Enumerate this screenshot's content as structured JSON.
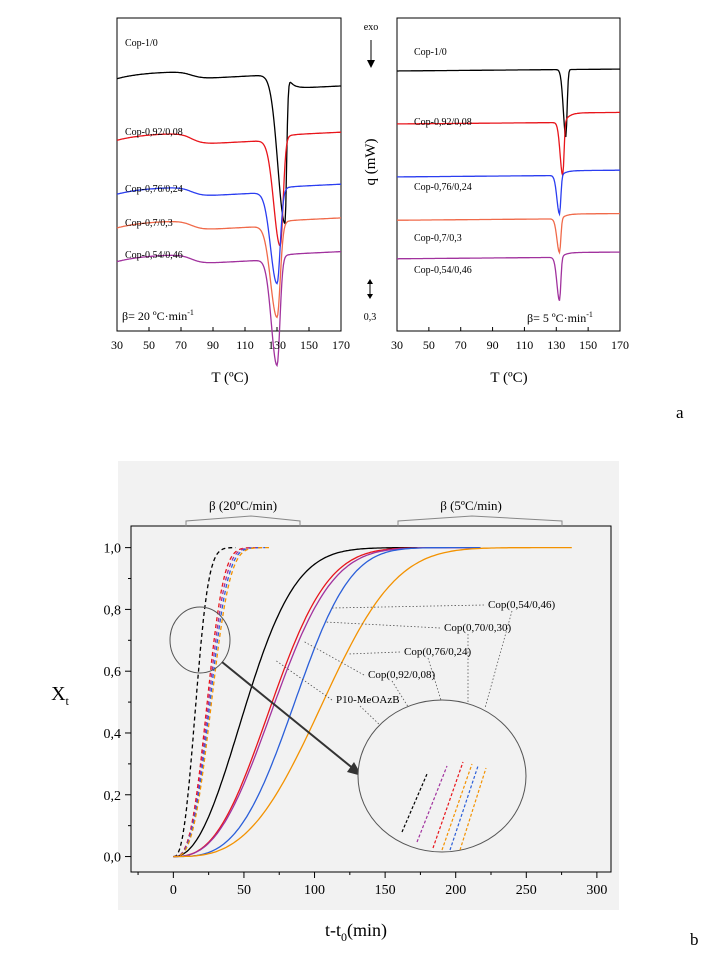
{
  "chart_data": [
    {
      "type": "line",
      "panel": "a-left",
      "xlabel": "T (ºC)",
      "xlim": [
        30,
        170
      ],
      "xticks": [
        30,
        50,
        70,
        90,
        110,
        130,
        150,
        170
      ],
      "annotation": "β= 20 ºC·min-1",
      "series": [
        {
          "name": "Cop-1/0",
          "color": "#000000",
          "base": 1.0,
          "glass_T": 77,
          "glass_step": 0.08,
          "peak_T": 135,
          "peak_depth": 1.55,
          "peak_w_left": 4.5,
          "peak_w_right": 1.0,
          "post_level": -0.15
        },
        {
          "name": "Cop-0,92/0,08",
          "color": "#e8151b",
          "base": 0.36,
          "glass_T": 77,
          "glass_step": 0.12,
          "peak_T": 132,
          "peak_depth": 1.1,
          "peak_w_left": 4.0,
          "peak_w_right": 1.8,
          "post_level": 0.05
        },
        {
          "name": "Cop-0,76/0,24",
          "color": "#2b3ef0",
          "base": -0.2,
          "glass_T": 77,
          "glass_step": 0.1,
          "peak_T": 130,
          "peak_depth": 0.95,
          "peak_w_left": 4.0,
          "peak_w_right": 2.0,
          "post_level": 0.05
        },
        {
          "name": "Cop-0,7/0,3",
          "color": "#f06a4a",
          "base": -0.55,
          "glass_T": 77,
          "glass_step": 0.1,
          "peak_T": 130,
          "peak_depth": 0.95,
          "peak_w_left": 4.0,
          "peak_w_right": 2.0,
          "post_level": 0.05
        },
        {
          "name": "Cop-0,54/0,46",
          "color": "#a1329e",
          "base": -0.9,
          "glass_T": 77,
          "glass_step": 0.1,
          "peak_T": 130,
          "peak_depth": 1.1,
          "peak_w_left": 3.5,
          "peak_w_right": 1.8,
          "post_level": 0.05
        }
      ]
    },
    {
      "type": "line",
      "panel": "a-right",
      "xlabel": "T (ºC)",
      "ylabel": "q (mW)",
      "xlim": [
        30,
        170
      ],
      "xticks": [
        30,
        50,
        70,
        90,
        110,
        130,
        150,
        170
      ],
      "annotation": "β= 5 ºC·min-1",
      "exo_label": "exo",
      "scale_label": "0,3",
      "series": [
        {
          "name": "Cop-1/0",
          "color": "#000000",
          "base": 1.0,
          "peak_T": 136,
          "peak_depth": 0.7,
          "post_level": 0.0
        },
        {
          "name": "Cop-0,92/0,08",
          "color": "#e8151b",
          "base": 0.45,
          "peak_T": 134,
          "peak_depth": 0.55,
          "post_level": 0.1
        },
        {
          "name": "Cop-0,76/0,24",
          "color": "#2b3ef0",
          "base": -0.1,
          "peak_T": 132,
          "peak_depth": 0.4,
          "post_level": 0.05
        },
        {
          "name": "Cop-0,7/0,3",
          "color": "#f06a4a",
          "base": -0.55,
          "peak_T": 132,
          "peak_depth": 0.35,
          "post_level": 0.05
        },
        {
          "name": "Cop-0,54/0,46",
          "color": "#a1329e",
          "base": -0.95,
          "peak_T": 132,
          "peak_depth": 0.45,
          "post_level": 0.05
        }
      ]
    },
    {
      "type": "line",
      "panel": "b",
      "xlabel": "t-t0(min)",
      "ylabel": "Xt",
      "xlim": [
        -30,
        310
      ],
      "ylim": [
        -0.05,
        1.07
      ],
      "xticks": [
        0,
        50,
        100,
        150,
        200,
        250,
        300
      ],
      "yticks": [
        0.0,
        0.2,
        0.4,
        0.6,
        0.8,
        1.0
      ],
      "ytick_labels": [
        "0,0",
        "0,2",
        "0,4",
        "0,6",
        "0,8",
        "1,0"
      ],
      "group_labels": [
        "β (20ºC/min)",
        "β (5ºC/min)"
      ],
      "series_5C": [
        {
          "name": "P10-MeOAzB",
          "color": "#000000",
          "style": "solid",
          "t_end": 174,
          "t_half": 52,
          "n": 2.2
        },
        {
          "name": "Cop(0,92/0,08)",
          "color": "#e8151b",
          "style": "solid",
          "t_end": 215,
          "t_half": 70,
          "n": 2.6
        },
        {
          "name": "Cop(0,76/0,24)",
          "color": "#a1329e",
          "style": "solid",
          "t_end": 217,
          "t_half": 72,
          "n": 2.6
        },
        {
          "name": "Cop(0,70/0,30)",
          "color": "#2b5fd9",
          "style": "solid",
          "t_end": 219,
          "t_half": 86,
          "n": 3.2
        },
        {
          "name": "Cop(0,54/0,46)",
          "color": "#f39200",
          "style": "solid",
          "t_end": 284,
          "t_half": 106,
          "n": 3.0
        }
      ],
      "series_20C": [
        {
          "name": "P10-MeOAzB",
          "color": "#000000",
          "style": "dashed",
          "t_end": 44,
          "t_half": 16,
          "n": 2.6
        },
        {
          "name": "Cop(0,92/0,08)",
          "color": "#e8151b",
          "style": "dashed",
          "t_end": 62,
          "t_half": 24,
          "n": 3.0
        },
        {
          "name": "Cop(0,76/0,24)",
          "color": "#a1329e",
          "style": "dashed",
          "t_end": 63,
          "t_half": 25,
          "n": 3.0
        },
        {
          "name": "Cop(0,70/0,30)",
          "color": "#2b5fd9",
          "style": "dashed",
          "t_end": 65,
          "t_half": 26,
          "n": 3.0
        },
        {
          "name": "Cop(0,54/0,46)",
          "color": "#f39200",
          "style": "dashed",
          "t_end": 68,
          "t_half": 27,
          "n": 3.0
        }
      ],
      "annotations": [
        "Cop(0,54/0,46)",
        "Cop(0,70/0,30)",
        "Cop(0,76/0,24)",
        "Cop(0,92/0,08)",
        "P10-MeOAzB"
      ]
    }
  ],
  "panel_labels": {
    "a": "a",
    "b": "b"
  }
}
